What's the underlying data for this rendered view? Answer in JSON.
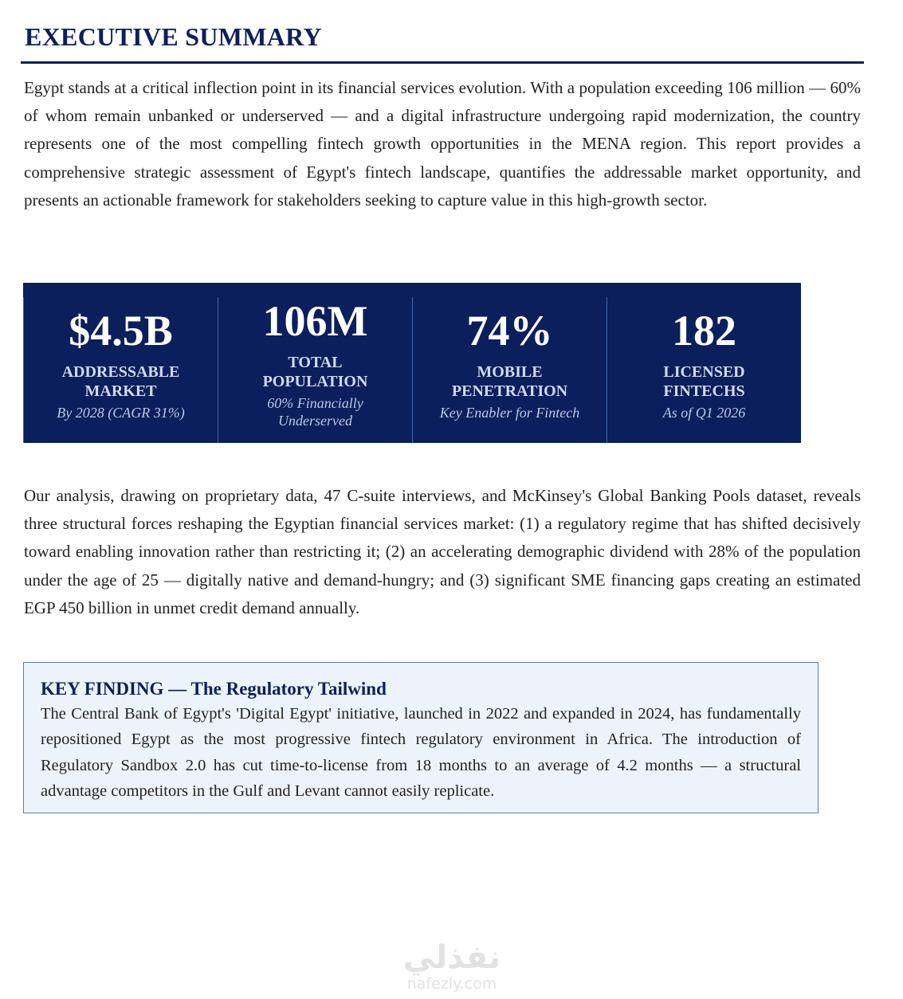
{
  "title": "EXECUTIVE SUMMARY",
  "intro": "Egypt stands at a critical inflection point in its financial services evolution. With a population exceeding 106 million — 60% of whom remain unbanked or underserved — and a digital infrastructure undergoing rapid modernization, the country represents one of the most compelling fintech growth opportunities in the MENA region. This report provides a comprehensive strategic assessment of Egypt's fintech landscape, quantifies the addressable market opportunity, and presents an actionable framework for stakeholders seeking to capture value in this high-growth sector.",
  "stats": [
    {
      "value": "$4.5B",
      "label": "ADDRESSABLE MARKET",
      "sub": "By 2028 (CAGR 31%)"
    },
    {
      "value": "106M",
      "label": "TOTAL POPULATION",
      "sub": "60% Financially Underserved"
    },
    {
      "value": "74%",
      "label": "MOBILE PENETRATION",
      "sub": "Key Enabler for Fintech"
    },
    {
      "value": "182",
      "label": "LICENSED FINTECHS",
      "sub": "As of Q1 2026"
    }
  ],
  "analysis": "Our analysis, drawing on proprietary data, 47 C-suite interviews, and McKinsey's Global Banking Pools dataset, reveals three structural forces reshaping the Egyptian financial services market: (1) a regulatory regime that has shifted decisively toward enabling innovation rather than restricting it; (2) an accelerating demographic dividend with 28% of the population under the age of 25 — digitally native and demand-hungry; and (3) significant SME financing gaps creating an estimated EGP 450 billion in unmet credit demand annually.",
  "key_finding": {
    "title": "KEY FINDING — The Regulatory Tailwind",
    "body": "The Central Bank of Egypt's 'Digital Egypt' initiative, launched in 2022 and expanded in 2024, has fundamentally repositioned Egypt as the most progressive fintech regulatory environment in Africa. The introduction of Regulatory Sandbox 2.0 has cut time-to-license from 18 months to an average of 4.2 months — a structural advantage competitors in the Gulf and Levant cannot easily replicate."
  },
  "watermark": {
    "arabic": "نفذلي",
    "latin": "nafezly.com"
  },
  "colors": {
    "navy": "#0b1f5c",
    "box_bg": "#edf3fa",
    "box_border": "#5b7fb5"
  }
}
